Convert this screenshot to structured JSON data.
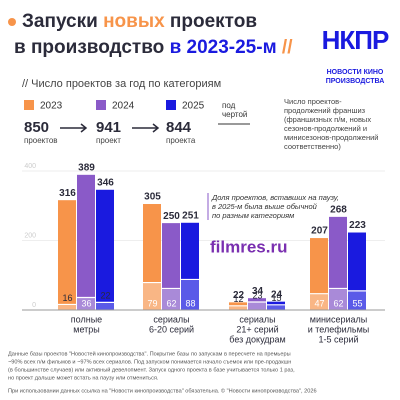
{
  "chart_data": {
    "type": "bar",
    "title_parts": [
      {
        "text": "Запуски ",
        "color": "#2b2b3a"
      },
      {
        "text": "новых",
        "color": "#f7944a"
      },
      {
        "text": " проектов",
        "color": "#2b2b3a"
      },
      {
        "text": "в производство ",
        "color": "#2b2b3a"
      },
      {
        "text": "в 2023-25-м",
        "color": "#1a1adf"
      },
      {
        "text": " //",
        "color": "#f7944a"
      }
    ],
    "subtitle": "// Число проектов за год по категориям",
    "logo": {
      "mark": "НКПР",
      "line1": "НОВОСТИ КИНО",
      "line2": "ПРОИЗВОДСТВА"
    },
    "categories": [
      [
        "полные",
        "метры"
      ],
      [
        "сериалы",
        "6-20 серий"
      ],
      [
        "сериалы",
        "21+ серий",
        "без докудрам"
      ],
      [
        "минисериалы",
        "и телефильмы",
        "1-5 серий"
      ]
    ],
    "series": [
      {
        "name": "2023",
        "color": "#f7944a",
        "total": "850",
        "total_label": "проектов",
        "values": [
          316,
          305,
          22,
          207
        ],
        "franchise": [
          16,
          79,
          12,
          47
        ]
      },
      {
        "name": "2024",
        "color": "#8a5ac8",
        "total": "941",
        "total_label": "проект",
        "values": [
          389,
          250,
          34,
          268
        ],
        "franchise": [
          36,
          62,
          23,
          62
        ]
      },
      {
        "name": "2025",
        "color": "#1a1adf",
        "total": "844",
        "total_label": "проекта",
        "values": [
          346,
          251,
          24,
          223
        ],
        "franchise": [
          22,
          88,
          15,
          55
        ]
      }
    ],
    "below_line_label": [
      "под",
      "чертой"
    ],
    "below_line_note": [
      "Число проектов-",
      "продолжений франшиз",
      "(франшизных п/м, новых",
      "сезонов-продолжений и",
      "минисезонов-продолжений",
      "соответственно)"
    ],
    "annotation": [
      "Доля проектов, вставших на паузу,",
      "в 2025-м была выше обычной",
      "по разным категориям"
    ],
    "watermark": "filmres.ru",
    "ylim": [
      0,
      400
    ],
    "yticks": [
      0,
      200,
      400
    ],
    "footer": [
      "Данные базы проектов \"Новостей кинопроизводства\". Покрытие базы по запускам в пересчете на премьеры",
      "~90% всех п/м фильмов и ~97% всех сериалов. Под запуском понимается начало съемок или пре-продакшн",
      "(в большинстве случаев) или активный девелопмент. Запуск одного проекта в базе учитывается только 1 раз,",
      "но проект дальше может встать на паузу или отмениться.",
      "При использовании данных ссылка на \"Новости кинопроизводства\" обязательна. © \"Новости кинопроизводства\", 2026"
    ]
  }
}
